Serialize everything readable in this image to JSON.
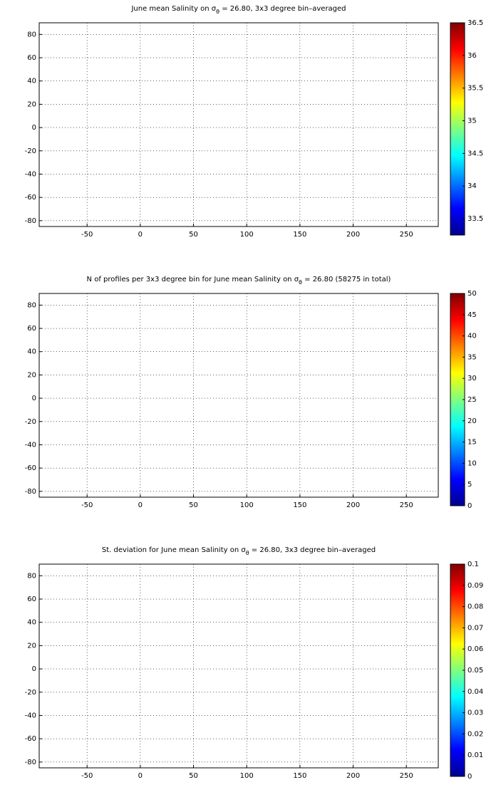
{
  "chart_data": [
    {
      "type": "heatmap",
      "title": "June mean Salinity on σ",
      "title_subscript": "θ",
      "title_end": " = 26.80, 3x3 degree bin–averaged",
      "xlim": [
        -95,
        280
      ],
      "ylim": [
        -85,
        90
      ],
      "xticks": [
        -50,
        0,
        50,
        100,
        150,
        200,
        250
      ],
      "yticks": [
        -80,
        -60,
        -40,
        -20,
        0,
        20,
        40,
        60,
        80
      ],
      "grid": true,
      "colorbar_lim": [
        33.25,
        36.5
      ],
      "colorbar_ticks": [
        33.5,
        34,
        34.5,
        35,
        35.5,
        36,
        36.5
      ]
    },
    {
      "type": "heatmap",
      "title": "N of profiles per 3x3 degree bin for June mean Salinity on σ",
      "title_subscript": "θ",
      "title_end": " = 26.80 (58275 in total)",
      "xlim": [
        -95,
        280
      ],
      "ylim": [
        -85,
        90
      ],
      "xticks": [
        -50,
        0,
        50,
        100,
        150,
        200,
        250
      ],
      "yticks": [
        -80,
        -60,
        -40,
        -20,
        0,
        20,
        40,
        60,
        80
      ],
      "grid": true,
      "colorbar_lim": [
        0,
        50
      ],
      "colorbar_ticks": [
        0,
        5,
        10,
        15,
        20,
        25,
        30,
        35,
        40,
        45,
        50
      ]
    },
    {
      "type": "heatmap",
      "title": "St. deviation for June mean Salinity on σ",
      "title_subscript": "θ",
      "title_end": " = 26.80, 3x3 degree bin–averaged",
      "xlim": [
        -95,
        280
      ],
      "ylim": [
        -85,
        90
      ],
      "xticks": [
        -50,
        0,
        50,
        100,
        150,
        200,
        250
      ],
      "yticks": [
        -80,
        -60,
        -40,
        -20,
        0,
        20,
        40,
        60,
        80
      ],
      "grid": true,
      "colorbar_lim": [
        0,
        0.1
      ],
      "colorbar_ticks": [
        0,
        0.01,
        0.02,
        0.03,
        0.04,
        0.05,
        0.06,
        0.07,
        0.08,
        0.09,
        0.1
      ]
    }
  ]
}
